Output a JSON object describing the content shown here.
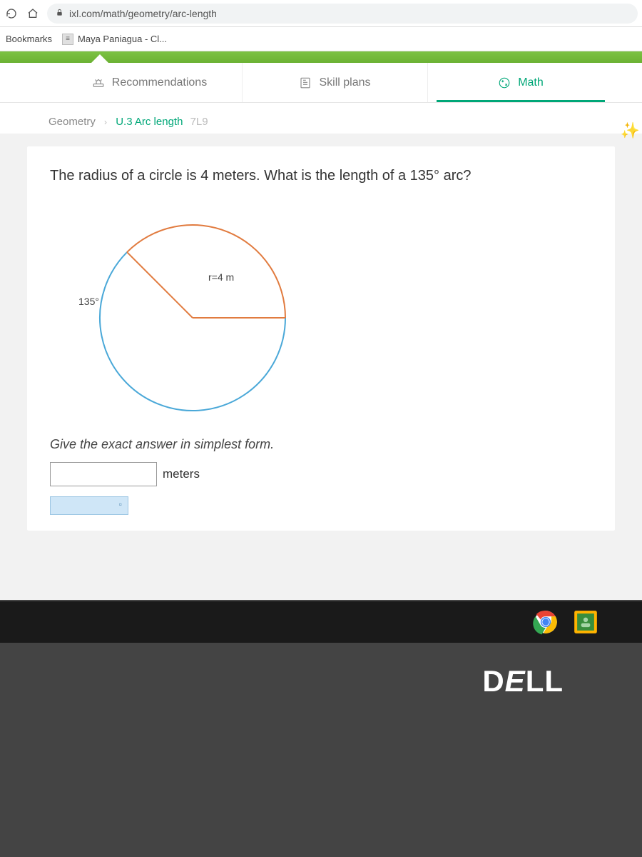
{
  "browser": {
    "url": "ixl.com/math/geometry/arc-length",
    "bookmarks_label": "Bookmarks",
    "bookmark_item": "Maya Paniagua - Cl..."
  },
  "nav": {
    "recommendations": "Recommendations",
    "skill_plans": "Skill plans",
    "math": "Math"
  },
  "breadcrumb": {
    "subject": "Geometry",
    "lesson": "U.3 Arc length",
    "code": "7L9"
  },
  "problem": {
    "question": "The radius of a circle is 4 meters. What is the length of a 135° arc?",
    "instruction": "Give the exact answer in simplest form.",
    "unit": "meters"
  },
  "diagram": {
    "type": "circle-arc",
    "radius_label": "r=4 m",
    "angle_label": "135°",
    "angle_deg": 135,
    "start_angle_deg": 90,
    "circle_color": "#4aa8d8",
    "arc_color": "#e17b3f",
    "radius_color": "#e17b3f",
    "stroke_width": 2,
    "label_fontsize": 14,
    "label_color": "#444"
  },
  "colors": {
    "accent_green": "#00a778",
    "topbar_green": "#7cc244",
    "text_gray": "#777777"
  },
  "footer_brand": "DELL"
}
